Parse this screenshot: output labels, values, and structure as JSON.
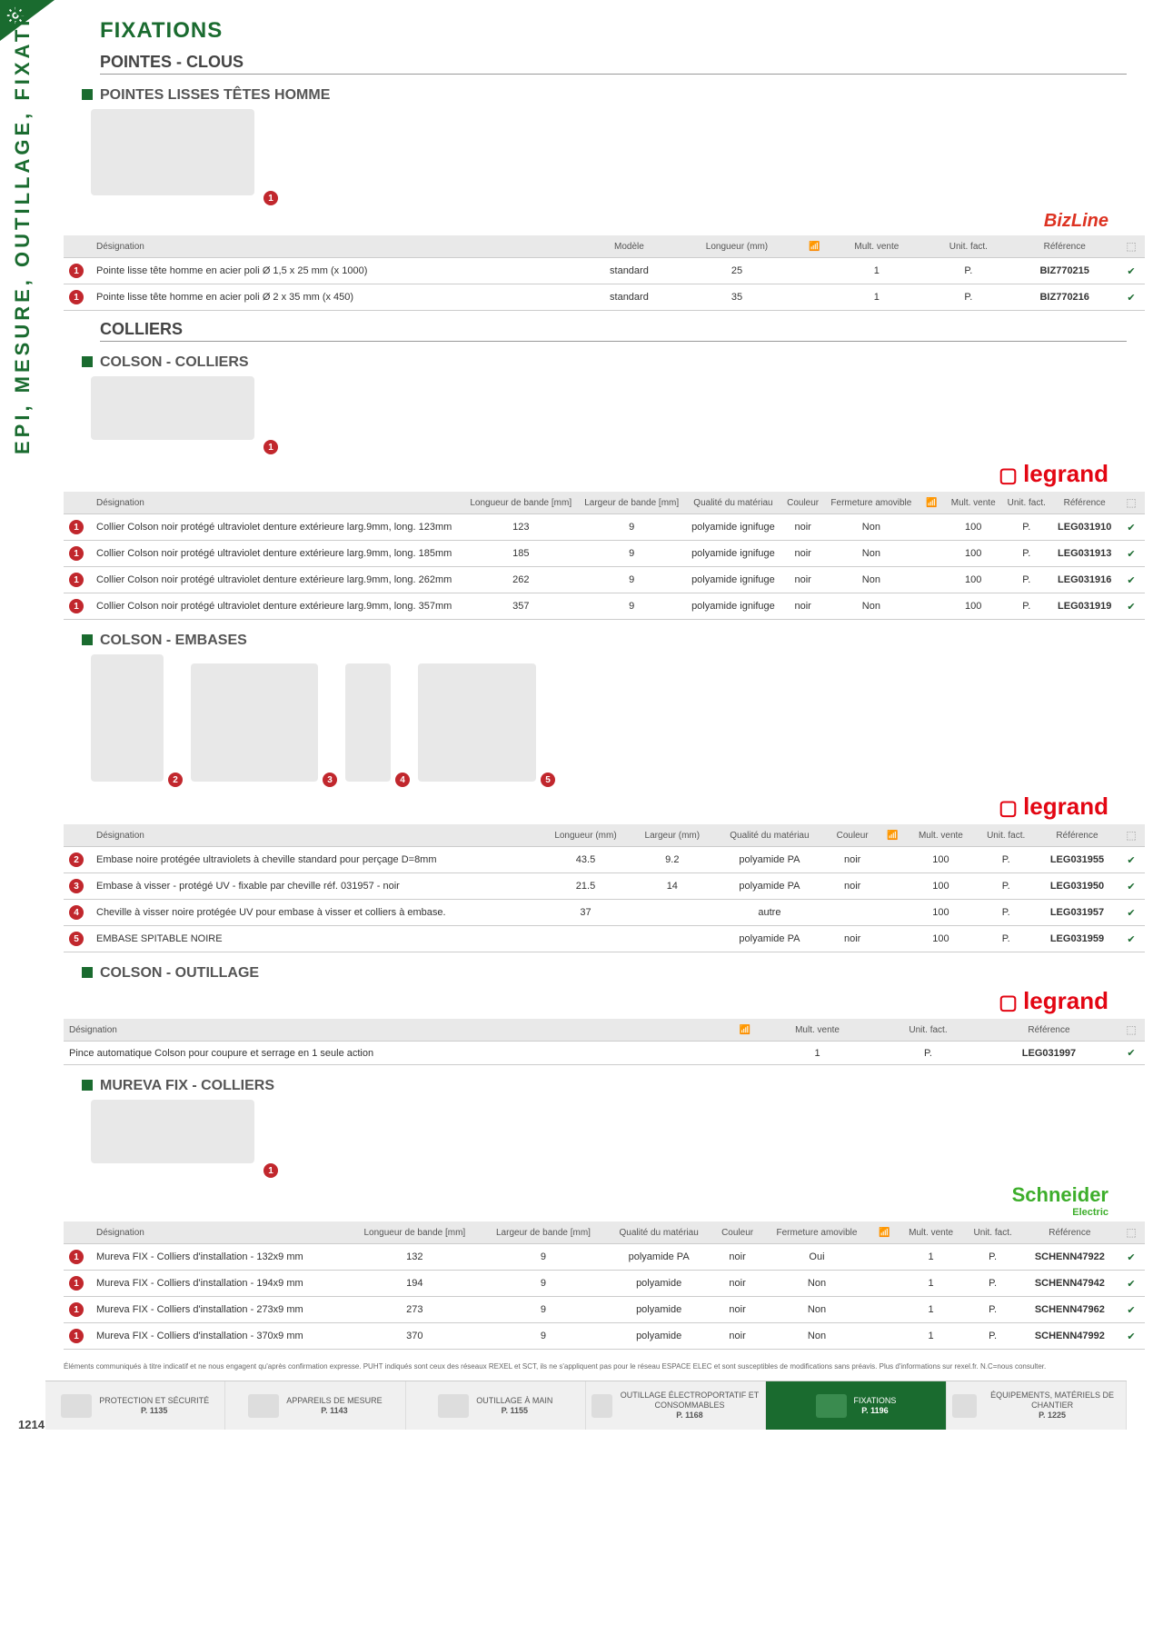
{
  "page_number": "1214",
  "side_label": "EPI, MESURE, OUTILLAGE, FIXATIONS ET CONSOMMABLES",
  "category_title": "FIXATIONS",
  "fine_print": "Éléments communiqués à titre indicatif et ne nous engagent qu'après confirmation expresse. PUHT indiqués sont ceux des réseaux REXEL et SCT, ils ne s'appliquent pas pour le réseau ESPACE ELEC et sont susceptibles de modifications sans préavis. Plus d'informations sur rexel.fr. N.C=nous consulter.",
  "sections": {
    "pointes": {
      "title": "POINTES - CLOUS",
      "product": {
        "title": "POINTES LISSES TÊTES HOMME",
        "brand": "BizLine",
        "headers": [
          "",
          "Désignation",
          "Modèle",
          "Longueur (mm)",
          "📶",
          "Mult. vente",
          "Unit. fact.",
          "Référence",
          "⬚"
        ],
        "rows": [
          {
            "n": "1",
            "des": "Pointe lisse tête homme en acier poli Ø 1,5 x 25 mm (x 1000)",
            "mod": "standard",
            "long": "25",
            "wifi": "",
            "mult": "1",
            "unit": "P.",
            "ref": "BIZ770215",
            "chk": "✔"
          },
          {
            "n": "1",
            "des": "Pointe lisse tête homme en acier poli Ø 2 x 35 mm (x 450)",
            "mod": "standard",
            "long": "35",
            "wifi": "",
            "mult": "1",
            "unit": "P.",
            "ref": "BIZ770216",
            "chk": "✔"
          }
        ]
      }
    },
    "colliers": {
      "title": "COLLIERS",
      "colson_colliers": {
        "title": "COLSON - COLLIERS",
        "brand": "legrand",
        "headers": [
          "",
          "Désignation",
          "Longueur de bande [mm]",
          "Largeur de bande [mm]",
          "Qualité du matériau",
          "Couleur",
          "Fermeture amovible",
          "📶",
          "Mult. vente",
          "Unit. fact.",
          "Référence",
          "⬚"
        ],
        "rows": [
          {
            "n": "1",
            "des": "Collier Colson noir protégé ultraviolet denture extérieure larg.9mm, long. 123mm",
            "lb": "123",
            "wb": "9",
            "mat": "polyamide ignifuge",
            "col": "noir",
            "ferm": "Non",
            "mult": "100",
            "unit": "P.",
            "ref": "LEG031910",
            "chk": "✔"
          },
          {
            "n": "1",
            "des": "Collier Colson noir protégé ultraviolet denture extérieure larg.9mm, long. 185mm",
            "lb": "185",
            "wb": "9",
            "mat": "polyamide ignifuge",
            "col": "noir",
            "ferm": "Non",
            "mult": "100",
            "unit": "P.",
            "ref": "LEG031913",
            "chk": "✔"
          },
          {
            "n": "1",
            "des": "Collier Colson noir protégé ultraviolet denture extérieure larg.9mm, long. 262mm",
            "lb": "262",
            "wb": "9",
            "mat": "polyamide ignifuge",
            "col": "noir",
            "ferm": "Non",
            "mult": "100",
            "unit": "P.",
            "ref": "LEG031916",
            "chk": "✔"
          },
          {
            "n": "1",
            "des": "Collier Colson noir protégé ultraviolet denture extérieure larg.9mm, long. 357mm",
            "lb": "357",
            "wb": "9",
            "mat": "polyamide ignifuge",
            "col": "noir",
            "ferm": "Non",
            "mult": "100",
            "unit": "P.",
            "ref": "LEG031919",
            "chk": "✔"
          }
        ]
      },
      "colson_embases": {
        "title": "COLSON - EMBASES",
        "brand": "legrand",
        "headers": [
          "",
          "Désignation",
          "Longueur (mm)",
          "Largeur (mm)",
          "Qualité du matériau",
          "Couleur",
          "📶",
          "Mult. vente",
          "Unit. fact.",
          "Référence",
          "⬚"
        ],
        "rows": [
          {
            "n": "2",
            "des": "Embase noire protégée ultraviolets à cheville standard pour perçage D=8mm",
            "long": "43.5",
            "larg": "9.2",
            "mat": "polyamide PA",
            "col": "noir",
            "mult": "100",
            "unit": "P.",
            "ref": "LEG031955",
            "chk": "✔"
          },
          {
            "n": "3",
            "des": "Embase à visser - protégé UV - fixable par cheville réf. 031957 - noir",
            "long": "21.5",
            "larg": "14",
            "mat": "polyamide PA",
            "col": "noir",
            "mult": "100",
            "unit": "P.",
            "ref": "LEG031950",
            "chk": "✔"
          },
          {
            "n": "4",
            "des": "Cheville à visser noire protégée UV pour embase à visser et colliers à embase.",
            "long": "37",
            "larg": "",
            "mat": "autre",
            "col": "",
            "mult": "100",
            "unit": "P.",
            "ref": "LEG031957",
            "chk": "✔"
          },
          {
            "n": "5",
            "des": "EMBASE SPITABLE NOIRE",
            "long": "",
            "larg": "",
            "mat": "polyamide PA",
            "col": "noir",
            "mult": "100",
            "unit": "P.",
            "ref": "LEG031959",
            "chk": "✔"
          }
        ]
      },
      "colson_outillage": {
        "title": "COLSON - OUTILLAGE",
        "brand": "legrand",
        "headers": [
          "Désignation",
          "📶",
          "Mult. vente",
          "Unit. fact.",
          "Référence",
          "⬚"
        ],
        "rows": [
          {
            "des": "Pince automatique Colson pour coupure et serrage en 1 seule action",
            "mult": "1",
            "unit": "P.",
            "ref": "LEG031997",
            "chk": "✔"
          }
        ]
      },
      "mureva": {
        "title": "MUREVA FIX - COLLIERS",
        "brand": "Schneider",
        "brand_sub": "Electric",
        "headers": [
          "",
          "Désignation",
          "Longueur de bande [mm]",
          "Largeur de bande [mm]",
          "Qualité du matériau",
          "Couleur",
          "Fermeture amovible",
          "📶",
          "Mult. vente",
          "Unit. fact.",
          "Référence",
          "⬚"
        ],
        "rows": [
          {
            "n": "1",
            "des": "Mureva FIX - Colliers d'installation - 132x9 mm",
            "lb": "132",
            "wb": "9",
            "mat": "polyamide PA",
            "col": "noir",
            "ferm": "Oui",
            "mult": "1",
            "unit": "P.",
            "ref": "SCHENN47922",
            "chk": "✔"
          },
          {
            "n": "1",
            "des": "Mureva FIX - Colliers d'installation - 194x9 mm",
            "lb": "194",
            "wb": "9",
            "mat": "polyamide",
            "col": "noir",
            "ferm": "Non",
            "mult": "1",
            "unit": "P.",
            "ref": "SCHENN47942",
            "chk": "✔"
          },
          {
            "n": "1",
            "des": "Mureva FIX - Colliers d'installation - 273x9 mm",
            "lb": "273",
            "wb": "9",
            "mat": "polyamide",
            "col": "noir",
            "ferm": "Non",
            "mult": "1",
            "unit": "P.",
            "ref": "SCHENN47962",
            "chk": "✔"
          },
          {
            "n": "1",
            "des": "Mureva FIX - Colliers d'installation - 370x9 mm",
            "lb": "370",
            "wb": "9",
            "mat": "polyamide",
            "col": "noir",
            "ferm": "Non",
            "mult": "1",
            "unit": "P.",
            "ref": "SCHENN47992",
            "chk": "✔"
          }
        ]
      }
    }
  },
  "footer_nav": [
    {
      "label": "PROTECTION ET SÉCURITÉ",
      "page": "P. 1135"
    },
    {
      "label": "APPAREILS DE MESURE",
      "page": "P. 1143"
    },
    {
      "label": "OUTILLAGE À MAIN",
      "page": "P. 1155"
    },
    {
      "label": "OUTILLAGE ÉLECTROPORTATIF ET CONSOMMABLES",
      "page": "P. 1168"
    },
    {
      "label": "FIXATIONS",
      "page": "P. 1196",
      "active": true
    },
    {
      "label": "ÉQUIPEMENTS, MATÉRIELS DE CHANTIER",
      "page": "P. 1225"
    }
  ]
}
